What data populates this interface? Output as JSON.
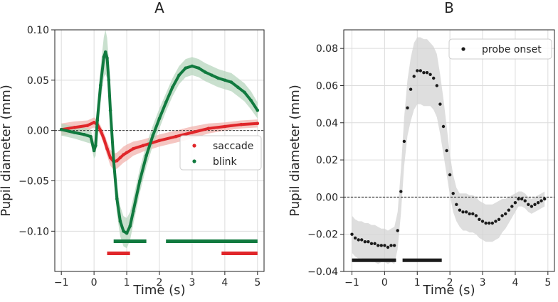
{
  "chart_data": [
    {
      "type": "scatter",
      "panel_label": "A",
      "xlabel": "Time (s)",
      "ylabel": "Pupil diameter (mm)",
      "xlim": [
        -1.2,
        5.2
      ],
      "ylim": [
        -0.14,
        0.1
      ],
      "xticks": [
        -1,
        0,
        1,
        2,
        3,
        4,
        5
      ],
      "xtick_labels": [
        "−1",
        "0",
        "1",
        "2",
        "3",
        "4",
        "5"
      ],
      "yticks": [
        -0.1,
        -0.05,
        0.0,
        0.05,
        0.1
      ],
      "ytick_labels": [
        "−0.10",
        "−0.05",
        "0.00",
        "0.05",
        "0.10"
      ],
      "grid": true,
      "zero_line": 0,
      "legend_position": "center-right",
      "series": [
        {
          "name": "saccade",
          "color": "#e0262a",
          "band_color": "#f2b3ad",
          "x": [
            -1.0,
            -0.6,
            -0.2,
            0.0,
            0.1,
            0.2,
            0.3,
            0.4,
            0.5,
            0.6,
            0.7,
            0.8,
            0.9,
            1.0,
            1.2,
            1.5,
            2.0,
            2.5,
            3.0,
            3.5,
            4.0,
            4.5,
            5.0
          ],
          "y": [
            0.001,
            0.003,
            0.005,
            0.008,
            0.006,
            0.0,
            -0.008,
            -0.018,
            -0.027,
            -0.031,
            -0.03,
            -0.027,
            -0.024,
            -0.022,
            -0.018,
            -0.015,
            -0.01,
            -0.006,
            -0.002,
            0.002,
            0.004,
            0.006,
            0.007
          ],
          "err": [
            0.006,
            0.006,
            0.005,
            0.005,
            0.005,
            0.005,
            0.006,
            0.007,
            0.008,
            0.008,
            0.008,
            0.008,
            0.008,
            0.008,
            0.007,
            0.006,
            0.006,
            0.006,
            0.006,
            0.005,
            0.004,
            0.004,
            0.004
          ]
        },
        {
          "name": "blink",
          "color": "#117a3f",
          "band_color": "#b7d6bd",
          "x": [
            -1.0,
            -0.6,
            -0.3,
            -0.1,
            0.0,
            0.05,
            0.1,
            0.2,
            0.3,
            0.35,
            0.4,
            0.45,
            0.5,
            0.6,
            0.7,
            0.8,
            0.9,
            1.0,
            1.1,
            1.2,
            1.4,
            1.6,
            1.8,
            2.0,
            2.2,
            2.4,
            2.6,
            2.8,
            3.0,
            3.2,
            3.4,
            3.6,
            3.8,
            4.0,
            4.2,
            4.4,
            4.6,
            4.8,
            5.0
          ],
          "y": [
            0.001,
            -0.002,
            -0.004,
            -0.006,
            -0.02,
            -0.015,
            0.01,
            0.045,
            0.073,
            0.078,
            0.072,
            0.05,
            0.02,
            -0.03,
            -0.068,
            -0.09,
            -0.1,
            -0.102,
            -0.095,
            -0.08,
            -0.05,
            -0.025,
            -0.005,
            0.012,
            0.028,
            0.043,
            0.055,
            0.062,
            0.064,
            0.062,
            0.058,
            0.055,
            0.052,
            0.05,
            0.048,
            0.043,
            0.038,
            0.03,
            0.02
          ],
          "err": [
            0.006,
            0.006,
            0.007,
            0.007,
            0.008,
            0.01,
            0.015,
            0.018,
            0.02,
            0.022,
            0.02,
            0.02,
            0.018,
            0.016,
            0.015,
            0.015,
            0.015,
            0.015,
            0.014,
            0.013,
            0.012,
            0.011,
            0.01,
            0.01,
            0.009,
            0.009,
            0.009,
            0.009,
            0.009,
            0.009,
            0.009,
            0.009,
            0.009,
            0.009,
            0.009,
            0.009,
            0.009,
            0.009,
            0.008
          ]
        }
      ],
      "significance_bars": [
        {
          "series": "blink",
          "color": "#117a3f",
          "y": -0.11,
          "ranges": [
            [
              0.6,
              1.6
            ],
            [
              2.2,
              5.0
            ]
          ]
        },
        {
          "series": "saccade",
          "color": "#e0262a",
          "y": -0.122,
          "ranges": [
            [
              0.4,
              1.1
            ],
            [
              3.9,
              5.0
            ]
          ]
        }
      ]
    },
    {
      "type": "scatter",
      "panel_label": "B",
      "xlabel": "Time (s)",
      "ylabel": "Pupil diameter (mm)",
      "xlim": [
        -1.25,
        5.2
      ],
      "ylim": [
        -0.04,
        0.09
      ],
      "xticks": [
        -1,
        0,
        1,
        2,
        3,
        4,
        5
      ],
      "xtick_labels": [
        "−1",
        "0",
        "1",
        "2",
        "3",
        "4",
        "5"
      ],
      "yticks": [
        -0.04,
        -0.02,
        0.0,
        0.02,
        0.04,
        0.06,
        0.08
      ],
      "ytick_labels": [
        "−0.04",
        "−0.02",
        "0.00",
        "0.02",
        "0.04",
        "0.06",
        "0.08"
      ],
      "grid": true,
      "zero_line": 0,
      "legend_position": "top-right",
      "series": [
        {
          "name": "probe onset",
          "color": "#1a1a1a",
          "band_color": "#d3d3d3",
          "x": [
            -1.0,
            -0.9,
            -0.8,
            -0.7,
            -0.6,
            -0.5,
            -0.4,
            -0.3,
            -0.2,
            -0.1,
            0.0,
            0.1,
            0.2,
            0.3,
            0.4,
            0.5,
            0.6,
            0.7,
            0.8,
            0.9,
            1.0,
            1.1,
            1.2,
            1.3,
            1.4,
            1.5,
            1.6,
            1.7,
            1.8,
            1.9,
            2.0,
            2.1,
            2.2,
            2.3,
            2.4,
            2.5,
            2.6,
            2.7,
            2.8,
            2.9,
            3.0,
            3.1,
            3.2,
            3.3,
            3.4,
            3.5,
            3.6,
            3.7,
            3.8,
            3.9,
            4.0,
            4.1,
            4.2,
            4.3,
            4.4,
            4.5,
            4.6,
            4.7,
            4.8,
            4.9
          ],
          "y": [
            -0.02,
            -0.022,
            -0.023,
            -0.023,
            -0.024,
            -0.024,
            -0.025,
            -0.025,
            -0.026,
            -0.026,
            -0.026,
            -0.027,
            -0.026,
            -0.026,
            -0.018,
            0.003,
            0.03,
            0.048,
            0.058,
            0.065,
            0.068,
            0.068,
            0.067,
            0.067,
            0.066,
            0.064,
            0.06,
            0.05,
            0.038,
            0.025,
            0.012,
            0.002,
            -0.004,
            -0.007,
            -0.008,
            -0.008,
            -0.009,
            -0.009,
            -0.01,
            -0.012,
            -0.013,
            -0.014,
            -0.014,
            -0.014,
            -0.013,
            -0.012,
            -0.01,
            -0.009,
            -0.007,
            -0.005,
            -0.003,
            -0.001,
            -0.001,
            -0.002,
            -0.004,
            -0.005,
            -0.004,
            -0.003,
            -0.002,
            -0.001
          ],
          "err": [
            0.01,
            0.01,
            0.01,
            0.01,
            0.01,
            0.01,
            0.01,
            0.01,
            0.01,
            0.009,
            0.009,
            0.009,
            0.009,
            0.01,
            0.01,
            0.012,
            0.013,
            0.015,
            0.017,
            0.018,
            0.018,
            0.018,
            0.018,
            0.018,
            0.017,
            0.017,
            0.017,
            0.016,
            0.015,
            0.013,
            0.011,
            0.01,
            0.009,
            0.009,
            0.01,
            0.01,
            0.01,
            0.01,
            0.01,
            0.01,
            0.01,
            0.01,
            0.01,
            0.01,
            0.01,
            0.01,
            0.009,
            0.008,
            0.007,
            0.006,
            0.005,
            0.004,
            0.004,
            0.004,
            0.004,
            0.004,
            0.004,
            0.004,
            0.004,
            0.004
          ]
        }
      ],
      "significance_bars": [
        {
          "series": "probe onset",
          "color": "#1a1a1a",
          "y": -0.034,
          "ranges": [
            [
              -1.0,
              0.35
            ],
            [
              0.55,
              1.75
            ]
          ]
        }
      ]
    }
  ]
}
